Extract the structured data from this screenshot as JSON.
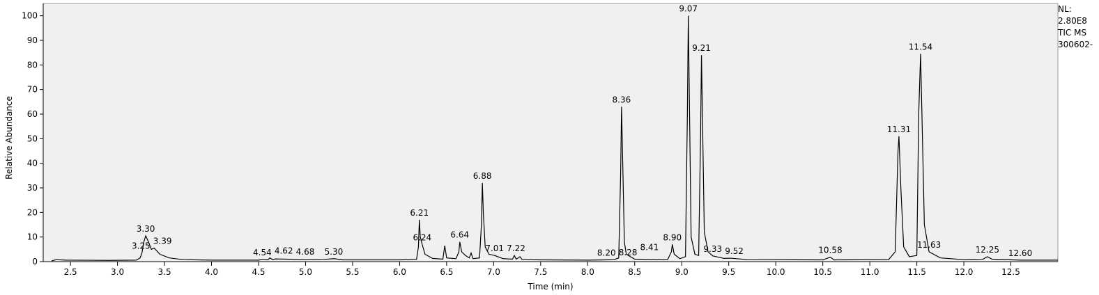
{
  "chart_data": {
    "type": "line",
    "x_label": "Time (min)",
    "y_label": "Relative Abundance",
    "info": [
      "NL:",
      "2.80E8",
      "TIC  MS",
      "300602-"
    ],
    "color": "#000000",
    "x": [
      2.3,
      2.35,
      2.45,
      2.9,
      3.2,
      3.24,
      3.26,
      3.28,
      3.3,
      3.33,
      3.36,
      3.39,
      3.45,
      3.55,
      3.7,
      4.0,
      4.5,
      4.54,
      4.6,
      4.62,
      4.65,
      4.68,
      5.0,
      5.2,
      5.3,
      5.4,
      6.0,
      6.18,
      6.2,
      6.21,
      6.22,
      6.24,
      6.27,
      6.35,
      6.46,
      6.48,
      6.5,
      6.6,
      6.63,
      6.64,
      6.66,
      6.7,
      6.74,
      6.76,
      6.78,
      6.85,
      6.87,
      6.88,
      6.89,
      6.91,
      6.95,
      7.01,
      7.1,
      7.2,
      7.22,
      7.24,
      7.28,
      7.3,
      7.5,
      8.0,
      8.2,
      8.28,
      8.33,
      8.35,
      8.36,
      8.37,
      8.39,
      8.41,
      8.5,
      8.85,
      8.89,
      8.9,
      8.92,
      8.98,
      9.04,
      9.06,
      9.07,
      9.08,
      9.1,
      9.14,
      9.18,
      9.2,
      9.21,
      9.22,
      9.24,
      9.28,
      9.33,
      9.45,
      9.52,
      9.7,
      10.5,
      10.58,
      10.62,
      11.2,
      11.27,
      11.3,
      11.31,
      11.33,
      11.36,
      11.42,
      11.5,
      11.52,
      11.54,
      11.56,
      11.58,
      11.63,
      11.75,
      12.0,
      12.2,
      12.25,
      12.3,
      12.6,
      13.0
    ],
    "values": [
      0.3,
      0.8,
      0.6,
      0.5,
      0.6,
      1.5,
      3.5,
      8,
      10.5,
      8,
      5,
      5.5,
      3,
      1.5,
      0.8,
      0.6,
      0.6,
      0.9,
      0.7,
      1.5,
      0.8,
      1.1,
      0.8,
      0.9,
      1.2,
      0.7,
      0.7,
      0.9,
      6,
      17,
      10,
      7,
      3,
      1.3,
      1,
      6.5,
      1.5,
      1.2,
      4,
      8,
      4,
      2.5,
      1.5,
      3.5,
      1.2,
      1.5,
      15,
      32,
      20,
      6,
      3,
      2.5,
      1.2,
      1,
      2.5,
      1,
      2,
      0.9,
      0.7,
      0.6,
      0.7,
      0.8,
      1.5,
      35,
      63,
      45,
      8,
      3,
      1,
      0.8,
      4,
      7,
      3,
      1.2,
      2,
      60,
      100,
      70,
      10,
      3,
      2.5,
      50,
      84,
      60,
      12,
      4,
      2.3,
      1.3,
      1.4,
      0.8,
      0.7,
      1.8,
      0.7,
      0.8,
      4,
      45,
      51,
      30,
      6,
      2,
      2.5,
      60,
      84.5,
      50,
      15,
      4,
      1.5,
      0.8,
      0.9,
      2,
      1,
      0.6,
      0.6
    ],
    "annotations": [
      {
        "value": 3.25,
        "label": "3.25",
        "y": 3.5
      },
      {
        "value": 3.3,
        "label": "3.30",
        "y": 10.5
      },
      {
        "value": 3.39,
        "label": "3.39",
        "y": 5.5
      },
      {
        "value": 4.54,
        "label": "4.54",
        "y": 0.9
      },
      {
        "value": 4.62,
        "label": "4.62",
        "y": 1.5
      },
      {
        "value": 4.68,
        "label": "4.68",
        "y": 1.1
      },
      {
        "value": 5.3,
        "label": "5.30",
        "y": 1.2
      },
      {
        "value": 6.21,
        "label": "6.21",
        "y": 17
      },
      {
        "value": 6.24,
        "label": "6.24",
        "y": 7
      },
      {
        "value": 6.64,
        "label": "6.64",
        "y": 8
      },
      {
        "value": 6.88,
        "label": "6.88",
        "y": 32
      },
      {
        "value": 7.01,
        "label": "7.01",
        "y": 2.5
      },
      {
        "value": 7.22,
        "label": "7.22",
        "y": 2.5
      },
      {
        "value": 8.2,
        "label": "8.20",
        "y": 0.7
      },
      {
        "value": 8.28,
        "label": "8.28",
        "y": 0.8
      },
      {
        "value": 8.36,
        "label": "8.36",
        "y": 63
      },
      {
        "value": 8.41,
        "label": "8.41",
        "y": 3
      },
      {
        "value": 8.9,
        "label": "8.90",
        "y": 7
      },
      {
        "value": 9.07,
        "label": "9.07",
        "y": 100
      },
      {
        "value": 9.21,
        "label": "9.21",
        "y": 84
      },
      {
        "value": 9.33,
        "label": "9.33",
        "y": 2.3
      },
      {
        "value": 9.52,
        "label": "9.52",
        "y": 1.4
      },
      {
        "value": 10.58,
        "label": "10.58",
        "y": 1.8
      },
      {
        "value": 11.31,
        "label": "11.31",
        "y": 51
      },
      {
        "value": 11.54,
        "label": "11.54",
        "y": 84.5
      },
      {
        "value": 11.63,
        "label": "11.63",
        "y": 4
      },
      {
        "value": 12.25,
        "label": "12.25",
        "y": 2
      },
      {
        "value": 12.6,
        "label": "12.60",
        "y": 0.6
      }
    ],
    "xlim": [
      2.21,
      13.0
    ],
    "ylim": [
      0,
      105
    ],
    "xticks": [
      {
        "value": 2.5,
        "label": "2.5"
      },
      {
        "value": 3,
        "label": "3.0"
      },
      {
        "value": 3.5,
        "label": "3.5"
      },
      {
        "value": 4,
        "label": "4.0"
      },
      {
        "value": 4.5,
        "label": "4.5"
      },
      {
        "value": 5,
        "label": "5.0"
      },
      {
        "value": 5.5,
        "label": "5.5"
      },
      {
        "value": 6,
        "label": "6.0"
      },
      {
        "value": 6.5,
        "label": "6.5"
      },
      {
        "value": 7,
        "label": "7.0"
      },
      {
        "value": 7.5,
        "label": "7.5"
      },
      {
        "value": 8,
        "label": "8.0"
      },
      {
        "value": 8.5,
        "label": "8.5"
      },
      {
        "value": 9,
        "label": "9.0"
      },
      {
        "value": 9.5,
        "label": "9.5"
      },
      {
        "value": 10,
        "label": "10.0"
      },
      {
        "value": 10.5,
        "label": "10.5"
      },
      {
        "value": 11,
        "label": "11.0"
      },
      {
        "value": 11.5,
        "label": "11.5"
      },
      {
        "value": 12,
        "label": "12.0"
      },
      {
        "value": 12.5,
        "label": "12.5"
      }
    ],
    "yticks": [
      0,
      10,
      20,
      30,
      40,
      50,
      60,
      70,
      80,
      90,
      100
    ]
  }
}
